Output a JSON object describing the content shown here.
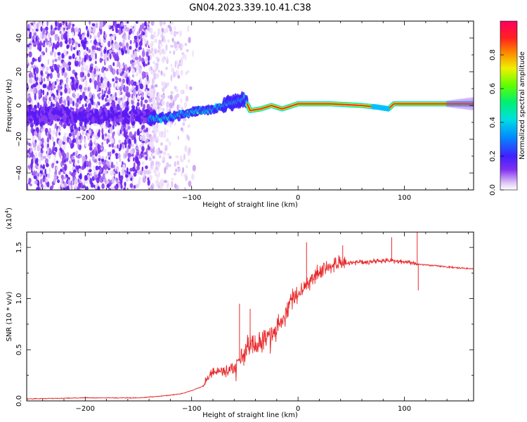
{
  "title": "GN04.2023.339.10.41.C38",
  "chart_data": [
    {
      "type": "heatmap",
      "name": "spectrogram",
      "xlabel": "Height of straight line (km)",
      "ylabel": "Frequency (Hz)",
      "xlim": [
        -255,
        165
      ],
      "ylim": [
        -50,
        50
      ],
      "xticks": [
        -200,
        -100,
        0,
        100
      ],
      "yticks": [
        -40,
        -20,
        0,
        20,
        40
      ],
      "colorbar": {
        "label": "Normalized spectral amplitude",
        "range": [
          0,
          1
        ],
        "ticks": [
          0.0,
          0.2,
          0.4,
          0.6,
          0.8
        ],
        "colors": [
          "#ffffff",
          "#e0c8f8",
          "#8030f0",
          "#4020ff",
          "#00c8f0",
          "#00f080",
          "#40ff00",
          "#f0f000",
          "#ff8000",
          "#ff2020",
          "#ff0060"
        ]
      },
      "noise_region": {
        "x": [
          -255,
          -140
        ],
        "freq": [
          -50,
          50
        ]
      },
      "ridge": [
        {
          "x": -140,
          "freq": -8,
          "amp": 0.35
        },
        {
          "x": -120,
          "freq": -7,
          "amp": 0.3
        },
        {
          "x": -100,
          "freq": -4,
          "amp": 0.3
        },
        {
          "x": -80,
          "freq": -2,
          "amp": 0.35
        },
        {
          "x": -60,
          "freq": 2,
          "amp": 0.45
        },
        {
          "x": -50,
          "freq": 4,
          "amp": 0.5
        },
        {
          "x": -45,
          "freq": -3,
          "amp": 0.65
        },
        {
          "x": -35,
          "freq": -2,
          "amp": 0.75
        },
        {
          "x": -25,
          "freq": 0,
          "amp": 0.85
        },
        {
          "x": -15,
          "freq": -2,
          "amp": 0.8
        },
        {
          "x": -5,
          "freq": 0,
          "amp": 0.9
        },
        {
          "x": 0,
          "freq": 1,
          "amp": 0.95
        },
        {
          "x": 30,
          "freq": 1,
          "amp": 1.0
        },
        {
          "x": 60,
          "freq": 0,
          "amp": 0.95
        },
        {
          "x": 75,
          "freq": -1,
          "amp": 0.7
        },
        {
          "x": 85,
          "freq": -2,
          "amp": 0.75
        },
        {
          "x": 90,
          "freq": 1,
          "amp": 0.95
        },
        {
          "x": 130,
          "freq": 1,
          "amp": 0.9
        },
        {
          "x": 165,
          "freq": 1,
          "amp": 0.85
        }
      ]
    },
    {
      "type": "line",
      "name": "snr",
      "xlabel": "Height of straight line (km)",
      "ylabel": "SNR (10 * v/v)",
      "exponent_label": "(x10",
      "exponent_power": "4",
      "exponent_close": ")",
      "xlim": [
        -255,
        165
      ],
      "ylim": [
        0,
        1.65
      ],
      "xticks": [
        -200,
        -100,
        0,
        100
      ],
      "yticks": [
        0.0,
        0.5,
        1.0,
        1.5
      ],
      "color": "#e8282a",
      "series": [
        {
          "name": "SNR",
          "x": [
            -255,
            -200,
            -150,
            -125,
            -110,
            -100,
            -90,
            -85,
            -80,
            -75,
            -70,
            -65,
            -60,
            -55,
            -50,
            -45,
            -40,
            -35,
            -30,
            -25,
            -20,
            -15,
            -10,
            -5,
            0,
            5,
            10,
            15,
            20,
            25,
            30,
            35,
            40,
            45,
            50,
            60,
            70,
            80,
            90,
            100,
            110,
            120,
            130,
            140,
            150,
            165
          ],
          "values": [
            0.02,
            0.03,
            0.03,
            0.05,
            0.07,
            0.1,
            0.14,
            0.22,
            0.28,
            0.3,
            0.28,
            0.3,
            0.32,
            0.4,
            0.45,
            0.55,
            0.55,
            0.6,
            0.62,
            0.65,
            0.7,
            0.8,
            0.9,
            1.0,
            1.05,
            1.1,
            1.15,
            1.22,
            1.26,
            1.3,
            1.32,
            1.34,
            1.35,
            1.34,
            1.35,
            1.36,
            1.36,
            1.37,
            1.37,
            1.36,
            1.34,
            1.33,
            1.32,
            1.31,
            1.3,
            1.29
          ]
        }
      ],
      "spikes": [
        {
          "x": -55,
          "value": 0.95
        },
        {
          "x": -45,
          "value": 0.9
        },
        {
          "x": 8,
          "value": 1.55
        },
        {
          "x": 42,
          "value": 1.52
        },
        {
          "x": 88,
          "value": 1.6
        },
        {
          "x": 112,
          "value": 1.65
        },
        {
          "x": 113,
          "value": 1.08
        }
      ]
    }
  ]
}
